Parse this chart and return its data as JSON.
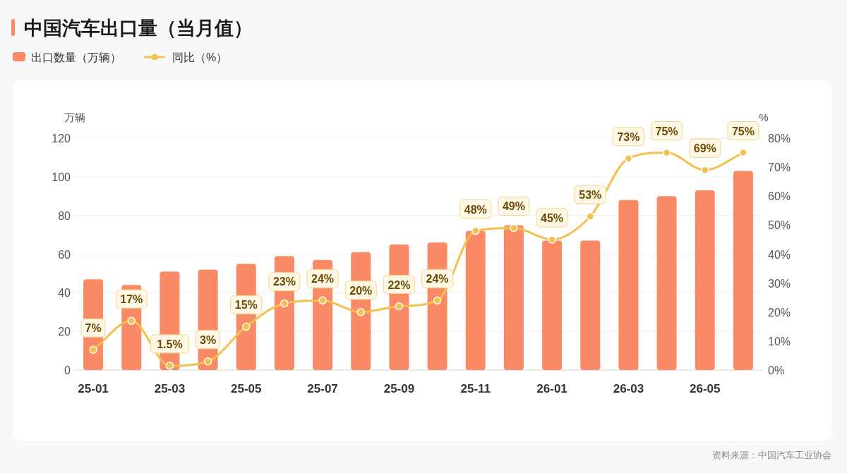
{
  "chart_data": {
    "type": "bar",
    "title": "中国汽车出口量（当月值）",
    "categories": [
      "25-01",
      null,
      "25-03",
      null,
      "25-05",
      null,
      "25-07",
      null,
      "25-09",
      null,
      "25-11",
      null,
      "26-01",
      null,
      "26-03",
      null,
      "26-05",
      null
    ],
    "series": [
      {
        "name": "出口数量（万辆）",
        "color": "#fa8a65",
        "values": [
          47,
          44,
          51,
          52,
          55,
          59,
          57,
          61,
          65,
          66,
          72,
          75,
          67,
          67,
          88,
          90,
          93,
          103
        ]
      },
      {
        "name": "同比（%）",
        "type": "line",
        "axis": "y2",
        "color": "#f5c04e",
        "marker": "circle",
        "values": [
          7,
          17,
          1.5,
          3,
          15,
          23,
          24,
          20,
          22,
          24,
          48,
          49,
          45,
          53,
          73,
          75,
          69,
          75
        ],
        "value_labels": [
          "7%",
          "17%",
          "1.5%",
          "3%",
          "15%",
          "23%",
          "24%",
          "20%",
          "22%",
          "24%",
          "48%",
          "49%",
          "45%",
          "53%",
          "73%",
          "75%",
          "69%",
          "75%"
        ]
      }
    ],
    "ylabel": "万辆",
    "y2label": "%",
    "ylim": [
      0,
      120
    ],
    "yticks": [
      0,
      20,
      40,
      60,
      80,
      100,
      120
    ],
    "y2lim": [
      0,
      80
    ],
    "y2ticks": [
      {
        "value": 0,
        "label": "0%"
      },
      {
        "value": 10,
        "label": "10%"
      },
      {
        "value": 20,
        "label": "20%"
      },
      {
        "value": 30,
        "label": "30%"
      },
      {
        "value": 40,
        "label": "40%"
      },
      {
        "value": 50,
        "label": "50%"
      },
      {
        "value": 60,
        "label": "60%"
      },
      {
        "value": 70,
        "label": "70%"
      },
      {
        "value": 80,
        "label": "80%"
      }
    ],
    "grid": "y",
    "legend": "top left",
    "annotations": [
      "资料来源：中国汽车工业协会"
    ]
  }
}
